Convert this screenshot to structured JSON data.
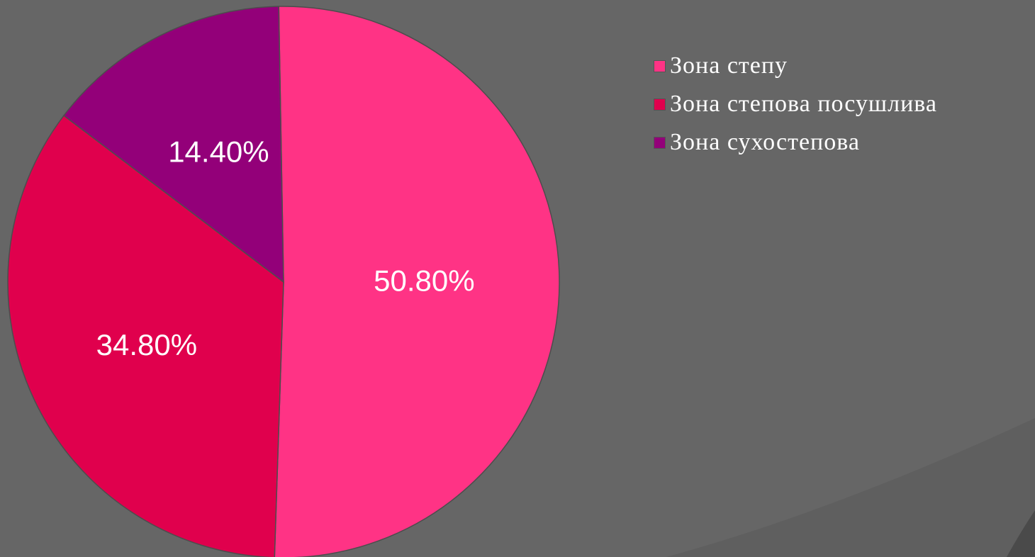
{
  "chart_data": {
    "type": "pie",
    "categories": [
      "Зона степу",
      "Зона степова посушлива",
      "Зона сухостепова"
    ],
    "values": [
      50.8,
      34.8,
      14.4
    ],
    "data_labels": [
      "50.80%",
      "34.80%",
      "14.40%"
    ],
    "colors": [
      "#ff3385",
      "#e0004d",
      "#930079"
    ],
    "legend_position": "top-right"
  },
  "legend": {
    "items": [
      {
        "label": "Зона степу",
        "color": "#ff3385"
      },
      {
        "label": "Зона степова посушлива",
        "color": "#e0004d"
      },
      {
        "label": "Зона сухостепова",
        "color": "#930079"
      }
    ]
  }
}
